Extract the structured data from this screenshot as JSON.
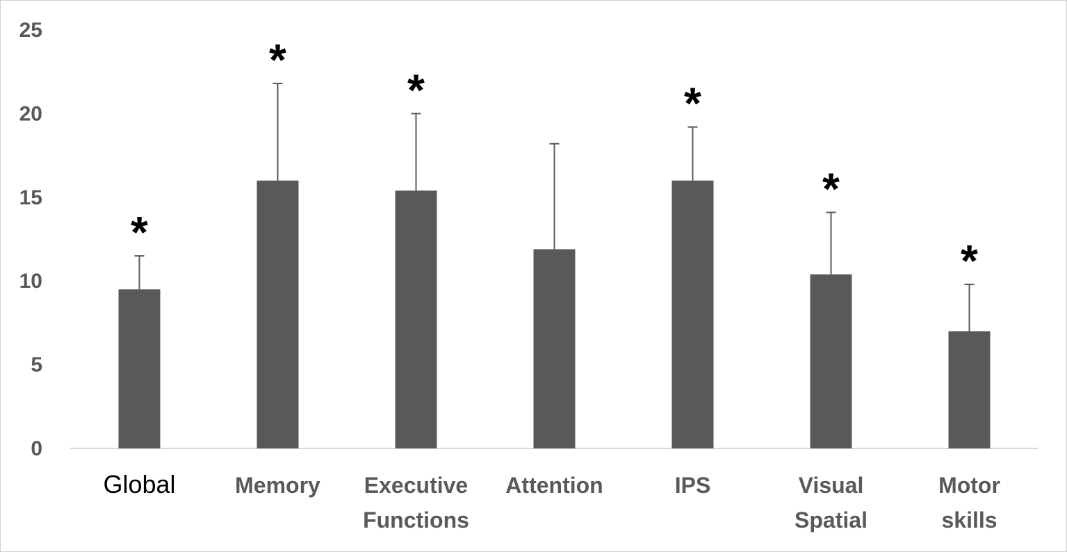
{
  "chart_data": {
    "type": "bar",
    "title": "",
    "xlabel": "",
    "ylabel": "",
    "categories": [
      [
        "Global"
      ],
      [
        "Memory"
      ],
      [
        "Executive",
        "Functions"
      ],
      [
        "Attention"
      ],
      [
        "IPS"
      ],
      [
        "Visual",
        "Spatial"
      ],
      [
        "Motor",
        "skills"
      ]
    ],
    "values": [
      9.5,
      16.0,
      15.4,
      11.9,
      16.0,
      10.4,
      7.0
    ],
    "error_upper": [
      11.5,
      21.8,
      20.0,
      18.2,
      19.2,
      14.1,
      9.8
    ],
    "significance": [
      "*",
      "*",
      "*",
      "",
      "*",
      "*",
      "*"
    ],
    "ylim": [
      0,
      25
    ],
    "yticks": [
      0,
      5,
      10,
      15,
      20,
      25
    ],
    "grid": false,
    "legend": "none",
    "bar_color": "#595959",
    "error_color": "#595959",
    "axis_color": "#d9d9d9"
  }
}
